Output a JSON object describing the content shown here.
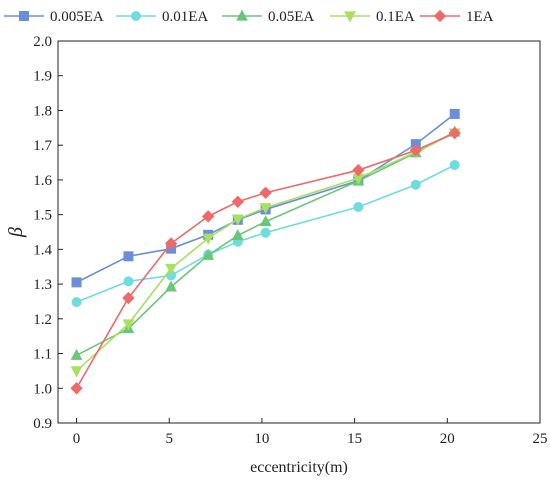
{
  "chart_data": {
    "type": "line",
    "title": "",
    "xlabel": "eccentricity(m)",
    "ylabel": "β",
    "xlim": [
      -1,
      25
    ],
    "ylim": [
      0.9,
      2.0
    ],
    "x_ticks": [
      0,
      5,
      10,
      15,
      20,
      25
    ],
    "y_ticks": [
      0.9,
      1.0,
      1.1,
      1.2,
      1.3,
      1.4,
      1.5,
      1.6,
      1.7,
      1.8,
      1.9,
      2.0
    ],
    "grid": false,
    "legend_position": "top",
    "series": [
      {
        "name": "0.005EA",
        "color": "#6a8fd8",
        "marker": "square",
        "x": [
          0,
          2.8,
          5.1,
          7.1,
          8.7,
          10.2,
          15.2,
          18.3,
          20.4
        ],
        "y": [
          1.305,
          1.38,
          1.402,
          1.442,
          1.485,
          1.515,
          1.598,
          1.703,
          1.79
        ]
      },
      {
        "name": "0.01EA",
        "color": "#6fdde0",
        "marker": "circle",
        "x": [
          0,
          2.8,
          5.1,
          7.1,
          8.7,
          10.2,
          15.2,
          18.3,
          20.4
        ],
        "y": [
          1.248,
          1.308,
          1.325,
          1.385,
          1.422,
          1.448,
          1.522,
          1.586,
          1.643
        ]
      },
      {
        "name": "0.05EA",
        "color": "#69c67b",
        "marker": "triangle-up",
        "x": [
          0,
          2.8,
          5.1,
          7.1,
          8.7,
          10.2,
          15.2,
          18.3,
          20.4
        ],
        "y": [
          1.095,
          1.172,
          1.292,
          1.383,
          1.44,
          1.48,
          1.597,
          1.678,
          1.738
        ]
      },
      {
        "name": "0.1EA",
        "color": "#a8e05f",
        "marker": "triangle-down",
        "x": [
          0,
          2.8,
          5.1,
          7.1,
          8.7,
          10.2,
          15.2,
          18.3,
          20.4
        ],
        "y": [
          1.05,
          1.185,
          1.345,
          1.432,
          1.487,
          1.52,
          1.605,
          1.68,
          1.735
        ]
      },
      {
        "name": "1EA",
        "color": "#ee6a6a",
        "marker": "diamond",
        "x": [
          0,
          2.8,
          5.1,
          7.1,
          8.7,
          10.2,
          15.2,
          18.3,
          20.4
        ],
        "y": [
          1.0,
          1.26,
          1.417,
          1.495,
          1.537,
          1.563,
          1.628,
          1.685,
          1.735
        ]
      }
    ]
  }
}
